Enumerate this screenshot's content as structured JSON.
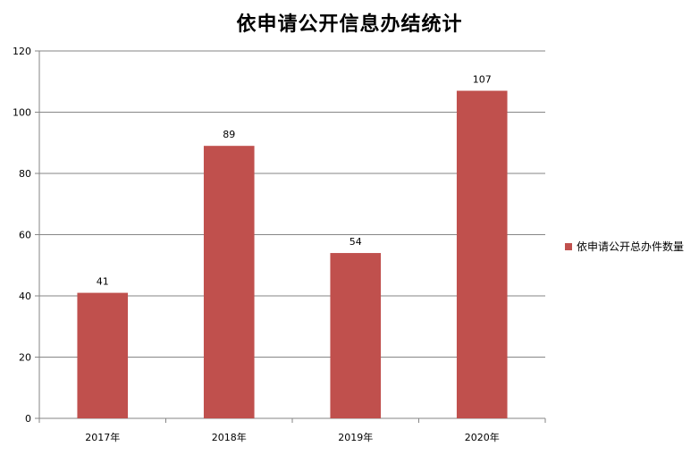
{
  "chart_data": {
    "type": "bar",
    "title": "依申请公开信息办结统计",
    "categories": [
      "2017年",
      "2018年",
      "2019年",
      "2020年"
    ],
    "series": [
      {
        "name": "依申请公开总办件数量",
        "values": [
          41,
          89,
          54,
          107
        ],
        "color": "#c0504d"
      }
    ],
    "y_ticks": [
      "0",
      "20",
      "40",
      "60",
      "80",
      "100",
      "120"
    ],
    "data_labels": [
      "41",
      "89",
      "54",
      "107"
    ],
    "ylim": [
      0,
      120
    ],
    "grid": true,
    "legend_position": "right"
  }
}
